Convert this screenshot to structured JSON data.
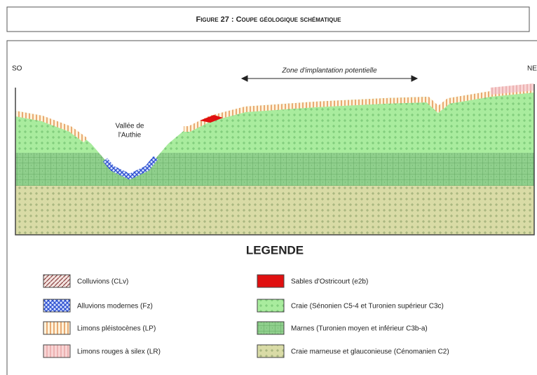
{
  "figure": {
    "title": "Figure 27 : Coupe géologique schématique",
    "left_label": "SO",
    "right_label": "NE",
    "zone_label": "Zone d'implantation potentielle",
    "valley_label": [
      "Vallée de",
      "l'Authie"
    ]
  },
  "legend": {
    "title": "LEGENDE",
    "items": [
      "Colluvions (CLv)",
      "Alluvions modernes (Fz)",
      "Limons pléistocènes (LP)",
      "Limons rouges à silex (LR)",
      "Sables d'Ostricourt (e2b)",
      "Craie (Sénonien C5-4 et Turonien supérieur C3c)",
      "Marnes (Turonien moyen et inférieur C3b-a)",
      "Craie marneuse et glauconieuse (Cénomanien C2)"
    ]
  }
}
